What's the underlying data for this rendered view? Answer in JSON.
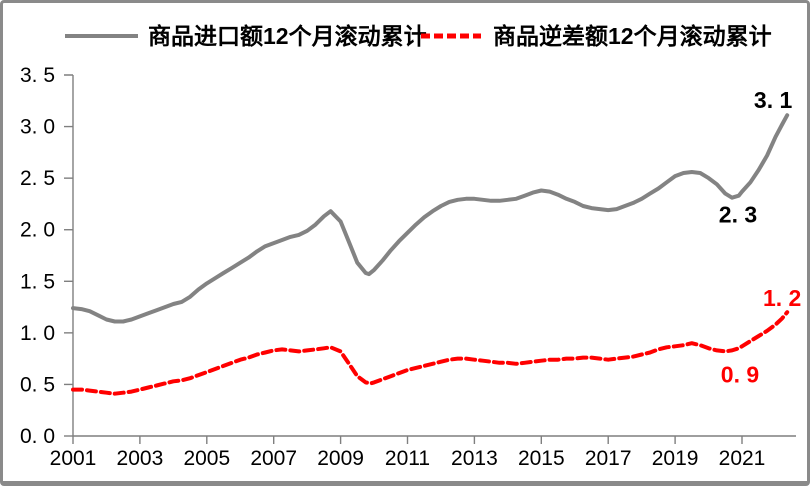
{
  "chart_data": {
    "type": "line",
    "title": "",
    "xlabel": "",
    "ylabel": "",
    "grid": false,
    "legend_position": "top-center",
    "x_range": [
      2001,
      2022.4
    ],
    "ylim": [
      0,
      3.5
    ],
    "xticks": [
      2001,
      2003,
      2005,
      2007,
      2009,
      2011,
      2013,
      2015,
      2017,
      2019,
      2021
    ],
    "ytick_values": [
      0,
      0.5,
      1.0,
      1.5,
      2.0,
      2.5,
      3.0,
      3.5
    ],
    "ytick_labels": [
      "0. 0",
      "0. 5",
      "1. 0",
      "1. 5",
      "2. 0",
      "2. 5",
      "3. 0",
      "3. 5"
    ],
    "colors": {
      "imports_line": "#838383",
      "deficit_line": "#ff0000",
      "axis": "#7f7f7f",
      "text": "#000000"
    },
    "legend": [
      {
        "label": "商品进口额12个月滚动累计",
        "color": "#838383",
        "style": "solid"
      },
      {
        "label": "商品逆差额12个月滚动累计",
        "color": "#ff0000",
        "style": "dashed"
      }
    ],
    "series": [
      {
        "name": "商品进口额12个月滚动累计",
        "color": "#838383",
        "style": "solid",
        "width": 4,
        "points": [
          [
            2001.0,
            1.24
          ],
          [
            2001.25,
            1.23
          ],
          [
            2001.5,
            1.21
          ],
          [
            2001.75,
            1.17
          ],
          [
            2002.0,
            1.13
          ],
          [
            2002.25,
            1.11
          ],
          [
            2002.5,
            1.11
          ],
          [
            2002.75,
            1.13
          ],
          [
            2003.0,
            1.16
          ],
          [
            2003.25,
            1.19
          ],
          [
            2003.5,
            1.22
          ],
          [
            2003.75,
            1.25
          ],
          [
            2004.0,
            1.28
          ],
          [
            2004.25,
            1.3
          ],
          [
            2004.5,
            1.35
          ],
          [
            2004.75,
            1.42
          ],
          [
            2005.0,
            1.48
          ],
          [
            2005.25,
            1.53
          ],
          [
            2005.5,
            1.58
          ],
          [
            2005.75,
            1.63
          ],
          [
            2006.0,
            1.68
          ],
          [
            2006.25,
            1.73
          ],
          [
            2006.5,
            1.79
          ],
          [
            2006.75,
            1.84
          ],
          [
            2007.0,
            1.87
          ],
          [
            2007.25,
            1.9
          ],
          [
            2007.5,
            1.93
          ],
          [
            2007.75,
            1.95
          ],
          [
            2008.0,
            1.99
          ],
          [
            2008.25,
            2.05
          ],
          [
            2008.5,
            2.13
          ],
          [
            2008.7,
            2.18
          ],
          [
            2009.0,
            2.08
          ],
          [
            2009.25,
            1.88
          ],
          [
            2009.5,
            1.68
          ],
          [
            2009.75,
            1.58
          ],
          [
            2009.85,
            1.57
          ],
          [
            2010.0,
            1.61
          ],
          [
            2010.25,
            1.7
          ],
          [
            2010.5,
            1.8
          ],
          [
            2010.75,
            1.89
          ],
          [
            2011.0,
            1.97
          ],
          [
            2011.25,
            2.05
          ],
          [
            2011.5,
            2.12
          ],
          [
            2011.75,
            2.18
          ],
          [
            2012.0,
            2.23
          ],
          [
            2012.25,
            2.27
          ],
          [
            2012.5,
            2.29
          ],
          [
            2012.75,
            2.3
          ],
          [
            2013.0,
            2.3
          ],
          [
            2013.25,
            2.29
          ],
          [
            2013.5,
            2.28
          ],
          [
            2013.75,
            2.28
          ],
          [
            2014.0,
            2.29
          ],
          [
            2014.25,
            2.3
          ],
          [
            2014.5,
            2.33
          ],
          [
            2014.75,
            2.36
          ],
          [
            2015.0,
            2.38
          ],
          [
            2015.25,
            2.37
          ],
          [
            2015.5,
            2.34
          ],
          [
            2015.75,
            2.3
          ],
          [
            2016.0,
            2.27
          ],
          [
            2016.25,
            2.23
          ],
          [
            2016.5,
            2.21
          ],
          [
            2016.75,
            2.2
          ],
          [
            2017.0,
            2.19
          ],
          [
            2017.25,
            2.2
          ],
          [
            2017.5,
            2.23
          ],
          [
            2017.75,
            2.26
          ],
          [
            2018.0,
            2.3
          ],
          [
            2018.25,
            2.35
          ],
          [
            2018.5,
            2.4
          ],
          [
            2018.75,
            2.46
          ],
          [
            2019.0,
            2.52
          ],
          [
            2019.25,
            2.55
          ],
          [
            2019.5,
            2.56
          ],
          [
            2019.75,
            2.55
          ],
          [
            2020.0,
            2.5
          ],
          [
            2020.25,
            2.44
          ],
          [
            2020.5,
            2.35
          ],
          [
            2020.7,
            2.31
          ],
          [
            2020.9,
            2.33
          ],
          [
            2021.0,
            2.37
          ],
          [
            2021.25,
            2.46
          ],
          [
            2021.5,
            2.58
          ],
          [
            2021.75,
            2.72
          ],
          [
            2022.0,
            2.9
          ],
          [
            2022.2,
            3.02
          ],
          [
            2022.35,
            3.11
          ]
        ]
      },
      {
        "name": "商品逆差额12个月滚动累计",
        "color": "#ff0000",
        "style": "dashed",
        "dash": "9 5",
        "width": 4,
        "points": [
          [
            2001.0,
            0.45
          ],
          [
            2001.25,
            0.45
          ],
          [
            2001.5,
            0.44
          ],
          [
            2001.75,
            0.43
          ],
          [
            2002.0,
            0.42
          ],
          [
            2002.25,
            0.41
          ],
          [
            2002.5,
            0.42
          ],
          [
            2002.75,
            0.43
          ],
          [
            2003.0,
            0.45
          ],
          [
            2003.25,
            0.47
          ],
          [
            2003.5,
            0.49
          ],
          [
            2003.75,
            0.51
          ],
          [
            2004.0,
            0.53
          ],
          [
            2004.25,
            0.54
          ],
          [
            2004.5,
            0.56
          ],
          [
            2004.75,
            0.59
          ],
          [
            2005.0,
            0.62
          ],
          [
            2005.25,
            0.65
          ],
          [
            2005.5,
            0.68
          ],
          [
            2005.75,
            0.71
          ],
          [
            2006.0,
            0.74
          ],
          [
            2006.25,
            0.76
          ],
          [
            2006.5,
            0.79
          ],
          [
            2006.75,
            0.81
          ],
          [
            2007.0,
            0.83
          ],
          [
            2007.25,
            0.84
          ],
          [
            2007.5,
            0.83
          ],
          [
            2007.75,
            0.82
          ],
          [
            2008.0,
            0.83
          ],
          [
            2008.25,
            0.84
          ],
          [
            2008.5,
            0.85
          ],
          [
            2008.7,
            0.86
          ],
          [
            2009.0,
            0.82
          ],
          [
            2009.25,
            0.7
          ],
          [
            2009.5,
            0.58
          ],
          [
            2009.75,
            0.52
          ],
          [
            2009.9,
            0.51
          ],
          [
            2010.0,
            0.52
          ],
          [
            2010.25,
            0.55
          ],
          [
            2010.5,
            0.58
          ],
          [
            2010.75,
            0.61
          ],
          [
            2011.0,
            0.64
          ],
          [
            2011.25,
            0.66
          ],
          [
            2011.5,
            0.68
          ],
          [
            2011.75,
            0.7
          ],
          [
            2012.0,
            0.72
          ],
          [
            2012.25,
            0.74
          ],
          [
            2012.5,
            0.75
          ],
          [
            2012.75,
            0.75
          ],
          [
            2013.0,
            0.74
          ],
          [
            2013.25,
            0.73
          ],
          [
            2013.5,
            0.72
          ],
          [
            2013.75,
            0.71
          ],
          [
            2014.0,
            0.71
          ],
          [
            2014.25,
            0.7
          ],
          [
            2014.5,
            0.71
          ],
          [
            2014.75,
            0.72
          ],
          [
            2015.0,
            0.73
          ],
          [
            2015.25,
            0.74
          ],
          [
            2015.5,
            0.74
          ],
          [
            2015.75,
            0.75
          ],
          [
            2016.0,
            0.75
          ],
          [
            2016.25,
            0.76
          ],
          [
            2016.5,
            0.76
          ],
          [
            2016.75,
            0.75
          ],
          [
            2017.0,
            0.74
          ],
          [
            2017.25,
            0.75
          ],
          [
            2017.5,
            0.76
          ],
          [
            2017.75,
            0.77
          ],
          [
            2018.0,
            0.79
          ],
          [
            2018.25,
            0.81
          ],
          [
            2018.5,
            0.84
          ],
          [
            2018.75,
            0.86
          ],
          [
            2019.0,
            0.87
          ],
          [
            2019.25,
            0.88
          ],
          [
            2019.5,
            0.9
          ],
          [
            2019.75,
            0.88
          ],
          [
            2020.0,
            0.85
          ],
          [
            2020.25,
            0.83
          ],
          [
            2020.5,
            0.82
          ],
          [
            2020.7,
            0.83
          ],
          [
            2020.9,
            0.85
          ],
          [
            2021.0,
            0.87
          ],
          [
            2021.25,
            0.92
          ],
          [
            2021.5,
            0.97
          ],
          [
            2021.75,
            1.02
          ],
          [
            2022.0,
            1.08
          ],
          [
            2022.2,
            1.14
          ],
          [
            2022.35,
            1.2
          ]
        ]
      }
    ],
    "annotations": [
      {
        "label": "3. 1",
        "value": 3.1,
        "x": 2021.93,
        "y": 3.18,
        "color": "#000000",
        "series": "商品进口额12个月滚动累计"
      },
      {
        "label": "2. 3",
        "value": 2.3,
        "x": 2020.88,
        "y": 2.07,
        "color": "#000000",
        "series": "商品进口额12个月滚动累计"
      },
      {
        "label": "1. 2",
        "value": 1.2,
        "x": 2022.2,
        "y": 1.26,
        "color": "#ff0000",
        "series": "商品逆差额12个月滚动累计"
      },
      {
        "label": "0. 9",
        "value": 0.9,
        "x": 2020.94,
        "y": 0.52,
        "color": "#ff0000",
        "series": "商品逆差额12个月滚动累计"
      }
    ]
  }
}
